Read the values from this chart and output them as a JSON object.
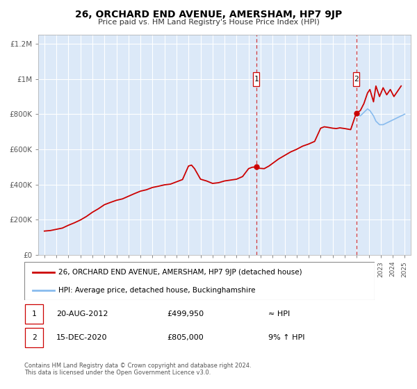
{
  "title": "26, ORCHARD END AVENUE, AMERSHAM, HP7 9JP",
  "subtitle": "Price paid vs. HM Land Registry's House Price Index (HPI)",
  "x_start": 1994.5,
  "x_end": 2025.5,
  "y_min": 0,
  "y_max": 1250000,
  "y_ticks": [
    0,
    200000,
    400000,
    600000,
    800000,
    1000000,
    1200000
  ],
  "y_tick_labels": [
    "£0",
    "£200K",
    "£400K",
    "£600K",
    "£800K",
    "£1M",
    "£1.2M"
  ],
  "x_ticks": [
    1995,
    1996,
    1997,
    1998,
    1999,
    2000,
    2001,
    2002,
    2003,
    2004,
    2005,
    2006,
    2007,
    2008,
    2009,
    2010,
    2011,
    2012,
    2013,
    2014,
    2015,
    2016,
    2017,
    2018,
    2019,
    2020,
    2021,
    2022,
    2023,
    2024,
    2025
  ],
  "plot_bg_color": "#dce9f8",
  "grid_color": "#ffffff",
  "line1_color": "#cc0000",
  "line2_color": "#88bbee",
  "marker_color": "#cc0000",
  "sale1_x": 2012.64,
  "sale1_y": 499950,
  "sale2_x": 2020.96,
  "sale2_y": 805000,
  "legend_line1": "26, ORCHARD END AVENUE, AMERSHAM, HP7 9JP (detached house)",
  "legend_line2": "HPI: Average price, detached house, Buckinghamshire",
  "table_row1": [
    "1",
    "20-AUG-2012",
    "£499,950",
    "≈ HPI"
  ],
  "table_row2": [
    "2",
    "15-DEC-2020",
    "£805,000",
    "9% ↑ HPI"
  ],
  "footer_line1": "Contains HM Land Registry data © Crown copyright and database right 2024.",
  "footer_line2": "This data is licensed under the Open Government Licence v3.0.",
  "prop_years": [
    1995.0,
    1995.5,
    1996.0,
    1996.5,
    1997.0,
    1997.5,
    1998.0,
    1998.5,
    1999.0,
    1999.5,
    2000.0,
    2000.5,
    2001.0,
    2001.5,
    2002.0,
    2002.5,
    2003.0,
    2003.5,
    2004.0,
    2004.5,
    2005.0,
    2005.5,
    2006.0,
    2006.5,
    2007.0,
    2007.25,
    2007.5,
    2008.0,
    2008.5,
    2009.0,
    2009.5,
    2010.0,
    2010.5,
    2011.0,
    2011.5,
    2012.0,
    2012.3,
    2012.64,
    2012.9,
    2013.3,
    2013.7,
    2014.0,
    2014.5,
    2015.0,
    2015.5,
    2016.0,
    2016.5,
    2017.0,
    2017.5,
    2018.0,
    2018.3,
    2018.6,
    2019.0,
    2019.3,
    2019.6,
    2020.0,
    2020.5,
    2020.96,
    2021.3,
    2021.6,
    2021.9,
    2022.1,
    2022.4,
    2022.6,
    2022.9,
    2023.2,
    2023.5,
    2023.8,
    2024.1,
    2024.4,
    2024.7
  ],
  "prop_prices": [
    135000,
    138000,
    145000,
    152000,
    168000,
    182000,
    198000,
    218000,
    242000,
    262000,
    285000,
    298000,
    310000,
    318000,
    333000,
    348000,
    362000,
    370000,
    383000,
    390000,
    398000,
    402000,
    415000,
    428000,
    505000,
    510000,
    490000,
    430000,
    420000,
    406000,
    410000,
    420000,
    425000,
    430000,
    445000,
    490000,
    498000,
    499950,
    492000,
    490000,
    505000,
    520000,
    545000,
    565000,
    585000,
    600000,
    618000,
    630000,
    645000,
    720000,
    728000,
    725000,
    720000,
    718000,
    722000,
    718000,
    712000,
    805000,
    820000,
    860000,
    920000,
    940000,
    870000,
    960000,
    900000,
    950000,
    910000,
    940000,
    900000,
    930000,
    960000
  ],
  "hpi_years": [
    2020.96,
    2021.3,
    2021.6,
    2021.9,
    2022.1,
    2022.4,
    2022.6,
    2022.9,
    2023.2,
    2023.5,
    2023.8,
    2024.1,
    2024.4,
    2024.7,
    2025.0
  ],
  "hpi_prices": [
    805000,
    790000,
    810000,
    830000,
    820000,
    790000,
    760000,
    740000,
    740000,
    750000,
    760000,
    770000,
    780000,
    790000,
    800000
  ]
}
